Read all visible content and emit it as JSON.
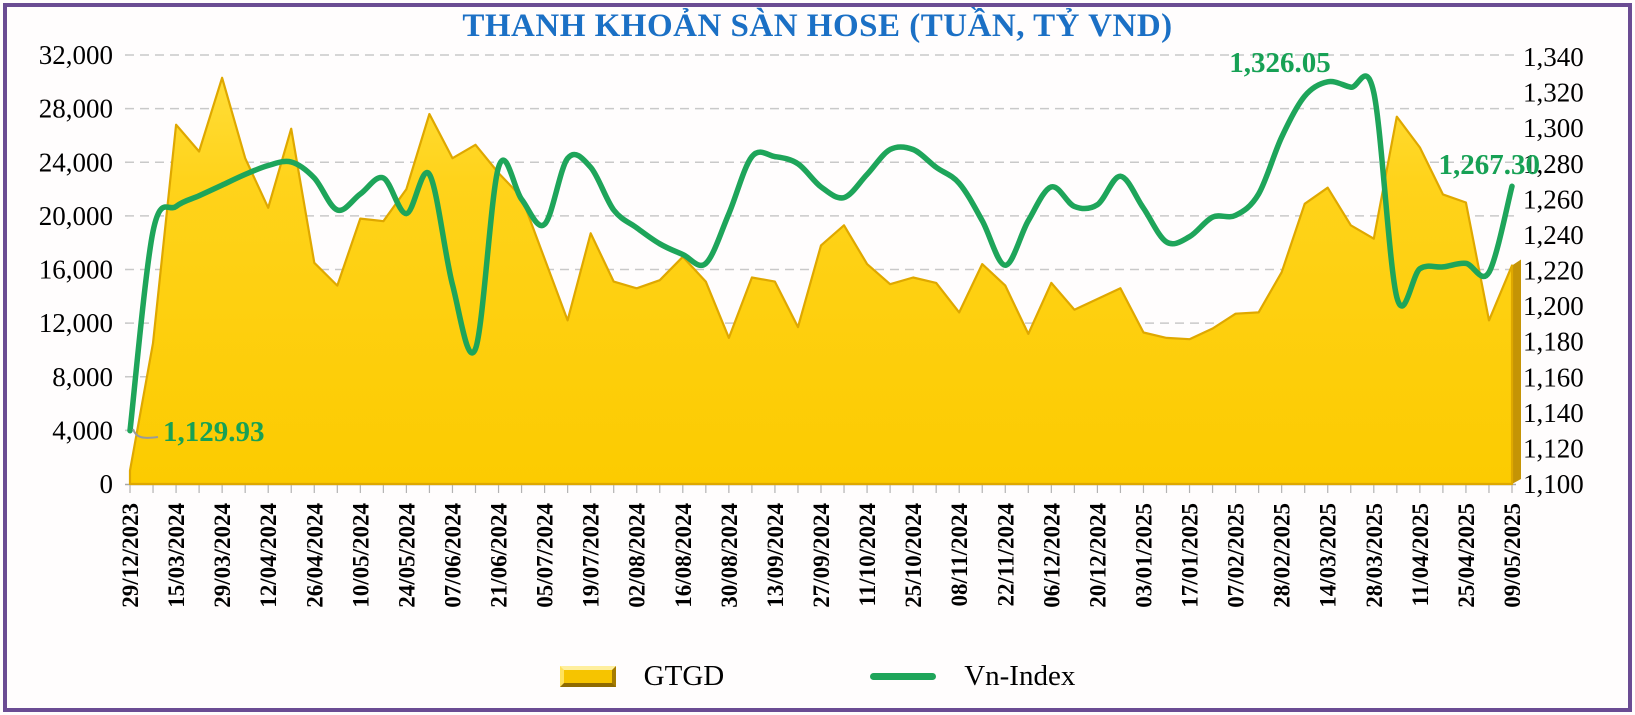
{
  "title": "THANH KHOẢN SÀN HOSE (TUẦN, TỶ VND)",
  "colors": {
    "title_blue": "#1B70C5",
    "area_gold": "#FFD31B",
    "area_edge": "#DFA800",
    "area_side_face": "#C59405",
    "line_green": "#1EA55A",
    "annotation_green": "#17A155",
    "grid_gray": "#C9C9C9",
    "frame_purple": "#6B4C93"
  },
  "left_axis": {
    "min": 0,
    "max": 32000,
    "step": 4000,
    "ticks": [
      "32,000",
      "28,000",
      "24,000",
      "20,000",
      "16,000",
      "12,000",
      "8,000",
      "4,000",
      "0"
    ]
  },
  "right_axis": {
    "min": 1100,
    "max": 1340,
    "step": 20,
    "ticks": [
      "1,340",
      "1,320",
      "1,300",
      "1,280",
      "1,260",
      "1,240",
      "1,220",
      "1,200",
      "1,180",
      "1,160",
      "1,140",
      "1,120",
      "1,100"
    ]
  },
  "legend": {
    "gtgd_label": "GTGD",
    "vnindex_label": "Vn-Index"
  },
  "annotations": [
    {
      "text": "1,129.93",
      "series": "Vn-Index",
      "point": "29/12/2023",
      "value": 1129.93
    },
    {
      "text": "1,326.05",
      "series": "Vn-Index",
      "point": "14/03/2025",
      "value": 1326.05
    },
    {
      "text": "1,267.30",
      "series": "Vn-Index",
      "point": "09/05/2025",
      "value": 1267.3
    }
  ],
  "chart_data": {
    "type": "combo",
    "title": "THANH KHOẢN SÀN HOSE (TUẦN, TỶ VND)",
    "x_label_interval": 2,
    "grid": "horizontal-dashed",
    "legend_position": "bottom",
    "categories": [
      "29/12/2023",
      "15/03/2024",
      "29/03/2024",
      "12/04/2024",
      "26/04/2024",
      "10/05/2024",
      "24/05/2024",
      "07/06/2024",
      "21/06/2024",
      "05/07/2024",
      "19/07/2024",
      "02/08/2024",
      "16/08/2024",
      "30/08/2024",
      "13/09/2024",
      "27/09/2024",
      "11/10/2024",
      "25/10/2024",
      "08/11/2024",
      "22/11/2024",
      "06/12/2024",
      "20/12/2024",
      "03/01/2025",
      "17/01/2025",
      "07/02/2025",
      "28/02/2025",
      "14/03/2025",
      "28/03/2025",
      "11/04/2025",
      "25/04/2025",
      "09/05/2025"
    ],
    "series": [
      {
        "name": "GTGD",
        "type": "area",
        "axis": "left",
        "ylim": [
          0,
          32000
        ],
        "values": [
          1000,
          10500,
          26800,
          24800,
          30300,
          24300,
          20600,
          26500,
          16500,
          14800,
          19800,
          19600,
          22000,
          27600,
          24300,
          25300,
          23200,
          21400,
          16800,
          12200,
          18700,
          15100,
          14600,
          15200,
          16950,
          15100,
          10900,
          15400,
          15100,
          11700,
          17800,
          19300,
          16400,
          14900,
          15400,
          15000,
          12800,
          16400,
          14800,
          11200,
          15000,
          13000,
          13800,
          14600,
          11300,
          10900,
          10800,
          11600,
          12700,
          12800,
          15800,
          20900,
          22100,
          19300,
          18300,
          27400,
          25100,
          21600,
          21000,
          12200,
          16300
        ]
      },
      {
        "name": "Vn-Index",
        "type": "line",
        "axis": "right",
        "ylim": [
          1100,
          1340
        ],
        "smooth": true,
        "values": [
          1129.93,
          1242,
          1256,
          1262,
          1268,
          1274,
          1279,
          1281,
          1272,
          1254,
          1263,
          1272,
          1252,
          1274,
          1212,
          1176,
          1278,
          1260,
          1246,
          1283,
          1278,
          1254,
          1244,
          1235,
          1229,
          1224,
          1252,
          1284,
          1284,
          1280,
          1267,
          1261,
          1274,
          1288,
          1288,
          1278,
          1269,
          1248,
          1223,
          1248,
          1267,
          1256,
          1257,
          1273,
          1255,
          1236,
          1239,
          1250,
          1251,
          1263,
          1295,
          1318,
          1326.05,
          1323,
          1320,
          1205,
          1221,
          1222,
          1224,
          1219,
          1267.3
        ]
      }
    ]
  }
}
